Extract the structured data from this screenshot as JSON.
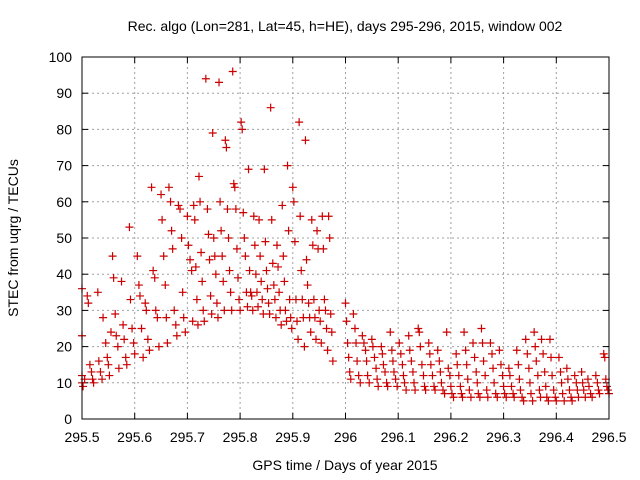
{
  "chart_data": {
    "type": "scatter",
    "title": "Rec. algo (Lon=281, Lat=45, h=HE), days 295-296, 2015, window 002",
    "xlabel": "GPS time / Days of year 2015",
    "ylabel": "STEC from uqrg / TECUs",
    "xlim": [
      295.5,
      296.5
    ],
    "ylim": [
      0,
      100
    ],
    "grid": true,
    "marker": "+",
    "color": "#cc0000",
    "xticks": [
      295.5,
      295.6,
      295.7,
      295.8,
      295.9,
      296.0,
      296.1,
      296.2,
      296.3,
      296.4,
      296.5
    ],
    "xtick_labels": [
      "295.5",
      "295.6",
      "295.7",
      "295.8",
      "295.9",
      "296",
      "296.1",
      "296.2",
      "296.3",
      "296.4",
      "296.5"
    ],
    "yticks": [
      0,
      10,
      20,
      30,
      40,
      50,
      60,
      70,
      80,
      90,
      100
    ],
    "ytick_labels": [
      "0",
      "10",
      "20",
      "30",
      "40",
      "50",
      "60",
      "70",
      "80",
      "90",
      "100"
    ],
    "points": [
      [
        295.5,
        36
      ],
      [
        295.5,
        23
      ],
      [
        295.5,
        12
      ],
      [
        295.5,
        10
      ],
      [
        295.502,
        9
      ],
      [
        295.505,
        11
      ],
      [
        295.51,
        34
      ],
      [
        295.512,
        32
      ],
      [
        295.515,
        15
      ],
      [
        295.518,
        13
      ],
      [
        295.52,
        11
      ],
      [
        295.522,
        10
      ],
      [
        295.53,
        35
      ],
      [
        295.532,
        16
      ],
      [
        295.535,
        13
      ],
      [
        295.538,
        11
      ],
      [
        295.54,
        28
      ],
      [
        295.545,
        21
      ],
      [
        295.548,
        17
      ],
      [
        295.55,
        15
      ],
      [
        295.552,
        12
      ],
      [
        295.555,
        24
      ],
      [
        295.558,
        45
      ],
      [
        295.56,
        39
      ],
      [
        295.563,
        29
      ],
      [
        295.565,
        23
      ],
      [
        295.568,
        20
      ],
      [
        295.57,
        14
      ],
      [
        295.575,
        38
      ],
      [
        295.578,
        26
      ],
      [
        295.58,
        22
      ],
      [
        295.583,
        17
      ],
      [
        295.585,
        15
      ],
      [
        295.59,
        53
      ],
      [
        295.592,
        33
      ],
      [
        295.595,
        25
      ],
      [
        295.598,
        21
      ],
      [
        295.6,
        18
      ],
      [
        295.605,
        45
      ],
      [
        295.608,
        37
      ],
      [
        295.61,
        34
      ],
      [
        295.613,
        25
      ],
      [
        295.616,
        17
      ],
      [
        295.62,
        32
      ],
      [
        295.622,
        30
      ],
      [
        295.625,
        22
      ],
      [
        295.628,
        19
      ],
      [
        295.632,
        64
      ],
      [
        295.635,
        41
      ],
      [
        295.638,
        39
      ],
      [
        295.64,
        30
      ],
      [
        295.643,
        28
      ],
      [
        295.646,
        20
      ],
      [
        295.65,
        62
      ],
      [
        295.652,
        55
      ],
      [
        295.655,
        45
      ],
      [
        295.658,
        37
      ],
      [
        295.66,
        28
      ],
      [
        295.662,
        21
      ],
      [
        295.665,
        64
      ],
      [
        295.668,
        60
      ],
      [
        295.67,
        52
      ],
      [
        295.672,
        47
      ],
      [
        295.675,
        30
      ],
      [
        295.678,
        26
      ],
      [
        295.68,
        23
      ],
      [
        295.683,
        59
      ],
      [
        295.686,
        58
      ],
      [
        295.689,
        50
      ],
      [
        295.691,
        35
      ],
      [
        295.693,
        28
      ],
      [
        295.696,
        24
      ],
      [
        295.7,
        56
      ],
      [
        295.702,
        48
      ],
      [
        295.705,
        44
      ],
      [
        295.708,
        41
      ],
      [
        295.71,
        27
      ],
      [
        295.712,
        59
      ],
      [
        295.714,
        55
      ],
      [
        295.716,
        42
      ],
      [
        295.718,
        33
      ],
      [
        295.72,
        26
      ],
      [
        295.722,
        67
      ],
      [
        295.724,
        60
      ],
      [
        295.726,
        46
      ],
      [
        295.728,
        38
      ],
      [
        295.73,
        30
      ],
      [
        295.732,
        27
      ],
      [
        295.735,
        94
      ],
      [
        295.738,
        58
      ],
      [
        295.74,
        51
      ],
      [
        295.742,
        44
      ],
      [
        295.744,
        34
      ],
      [
        295.746,
        29
      ],
      [
        295.748,
        79
      ],
      [
        295.75,
        50
      ],
      [
        295.752,
        45
      ],
      [
        295.754,
        40
      ],
      [
        295.756,
        32
      ],
      [
        295.758,
        28
      ],
      [
        295.76,
        93
      ],
      [
        295.762,
        60
      ],
      [
        295.764,
        52
      ],
      [
        295.766,
        45
      ],
      [
        295.768,
        38
      ],
      [
        295.77,
        30
      ],
      [
        295.772,
        77
      ],
      [
        295.774,
        75
      ],
      [
        295.776,
        58
      ],
      [
        295.778,
        50
      ],
      [
        295.78,
        41
      ],
      [
        295.782,
        35
      ],
      [
        295.784,
        30
      ],
      [
        295.786,
        96
      ],
      [
        295.788,
        65
      ],
      [
        295.79,
        64
      ],
      [
        295.792,
        58
      ],
      [
        295.794,
        47
      ],
      [
        295.796,
        39
      ],
      [
        295.798,
        33
      ],
      [
        295.8,
        30
      ],
      [
        295.802,
        82
      ],
      [
        295.804,
        80
      ],
      [
        295.806,
        57
      ],
      [
        295.808,
        50
      ],
      [
        295.81,
        45
      ],
      [
        295.812,
        35
      ],
      [
        295.814,
        31
      ],
      [
        295.816,
        69
      ],
      [
        295.818,
        41
      ],
      [
        295.82,
        35
      ],
      [
        295.822,
        34
      ],
      [
        295.824,
        30
      ],
      [
        295.826,
        56
      ],
      [
        295.828,
        48
      ],
      [
        295.83,
        40
      ],
      [
        295.832,
        35
      ],
      [
        295.834,
        31
      ],
      [
        295.836,
        55
      ],
      [
        295.838,
        45
      ],
      [
        295.84,
        38
      ],
      [
        295.842,
        33
      ],
      [
        295.844,
        29
      ],
      [
        295.846,
        69
      ],
      [
        295.848,
        49
      ],
      [
        295.85,
        41
      ],
      [
        295.852,
        36
      ],
      [
        295.854,
        32
      ],
      [
        295.856,
        29
      ],
      [
        295.858,
        86
      ],
      [
        295.86,
        55
      ],
      [
        295.862,
        43
      ],
      [
        295.864,
        37
      ],
      [
        295.866,
        33
      ],
      [
        295.868,
        28
      ],
      [
        295.87,
        48
      ],
      [
        295.872,
        42
      ],
      [
        295.874,
        35
      ],
      [
        295.876,
        30
      ],
      [
        295.878,
        26
      ],
      [
        295.88,
        59
      ],
      [
        295.882,
        45
      ],
      [
        295.884,
        38
      ],
      [
        295.886,
        30
      ],
      [
        295.888,
        27
      ],
      [
        295.89,
        70
      ],
      [
        295.892,
        52
      ],
      [
        295.894,
        33
      ],
      [
        295.896,
        28
      ],
      [
        295.898,
        25
      ],
      [
        295.9,
        64
      ],
      [
        295.902,
        60
      ],
      [
        295.904,
        49
      ],
      [
        295.906,
        33
      ],
      [
        295.908,
        27
      ],
      [
        295.91,
        22
      ],
      [
        295.912,
        82
      ],
      [
        295.914,
        56
      ],
      [
        295.916,
        41
      ],
      [
        295.918,
        33
      ],
      [
        295.92,
        28
      ],
      [
        295.922,
        20
      ],
      [
        295.924,
        77
      ],
      [
        295.926,
        44
      ],
      [
        295.928,
        37
      ],
      [
        295.93,
        32
      ],
      [
        295.932,
        28
      ],
      [
        295.934,
        24
      ],
      [
        295.936,
        55
      ],
      [
        295.938,
        48
      ],
      [
        295.94,
        33
      ],
      [
        295.942,
        28
      ],
      [
        295.944,
        22
      ],
      [
        295.946,
        52
      ],
      [
        295.948,
        47
      ],
      [
        295.95,
        30
      ],
      [
        295.952,
        27
      ],
      [
        295.954,
        21
      ],
      [
        295.956,
        56
      ],
      [
        295.958,
        47
      ],
      [
        295.96,
        33
      ],
      [
        295.962,
        30
      ],
      [
        295.964,
        25
      ],
      [
        295.966,
        19
      ],
      [
        295.968,
        56
      ],
      [
        295.97,
        50
      ],
      [
        295.972,
        29
      ],
      [
        295.974,
        24
      ],
      [
        295.976,
        16
      ],
      [
        296.0,
        32
      ],
      [
        296.002,
        27
      ],
      [
        296.004,
        21
      ],
      [
        296.006,
        17
      ],
      [
        296.008,
        13
      ],
      [
        296.01,
        11
      ],
      [
        296.015,
        29
      ],
      [
        296.018,
        25
      ],
      [
        296.02,
        21
      ],
      [
        296.022,
        16
      ],
      [
        296.025,
        12
      ],
      [
        296.028,
        10
      ],
      [
        296.032,
        23
      ],
      [
        296.035,
        21
      ],
      [
        296.038,
        19
      ],
      [
        296.04,
        16
      ],
      [
        296.042,
        12
      ],
      [
        296.045,
        10
      ],
      [
        296.05,
        22
      ],
      [
        296.052,
        20
      ],
      [
        296.055,
        17
      ],
      [
        296.058,
        14
      ],
      [
        296.06,
        11
      ],
      [
        296.062,
        9
      ],
      [
        296.068,
        20
      ],
      [
        296.07,
        18
      ],
      [
        296.072,
        15
      ],
      [
        296.075,
        13
      ],
      [
        296.078,
        10
      ],
      [
        296.08,
        9
      ],
      [
        296.085,
        24
      ],
      [
        296.088,
        19
      ],
      [
        296.09,
        16
      ],
      [
        296.092,
        13
      ],
      [
        296.095,
        11
      ],
      [
        296.098,
        9
      ],
      [
        296.102,
        21
      ],
      [
        296.105,
        18
      ],
      [
        296.108,
        15
      ],
      [
        296.11,
        12
      ],
      [
        296.112,
        10
      ],
      [
        296.115,
        8
      ],
      [
        296.12,
        23
      ],
      [
        296.122,
        19
      ],
      [
        296.125,
        16
      ],
      [
        296.128,
        13
      ],
      [
        296.13,
        10
      ],
      [
        296.132,
        8
      ],
      [
        296.138,
        25
      ],
      [
        296.14,
        24
      ],
      [
        296.142,
        20
      ],
      [
        296.145,
        15
      ],
      [
        296.148,
        12
      ],
      [
        296.15,
        9
      ],
      [
        296.152,
        8
      ],
      [
        296.158,
        21
      ],
      [
        296.16,
        18
      ],
      [
        296.162,
        15
      ],
      [
        296.165,
        12
      ],
      [
        296.168,
        9
      ],
      [
        296.17,
        8
      ],
      [
        296.175,
        19
      ],
      [
        296.178,
        16
      ],
      [
        296.18,
        13
      ],
      [
        296.182,
        10
      ],
      [
        296.185,
        8
      ],
      [
        296.188,
        7
      ],
      [
        296.192,
        24
      ],
      [
        296.195,
        14
      ],
      [
        296.198,
        12
      ],
      [
        296.2,
        9
      ],
      [
        296.202,
        7
      ],
      [
        296.205,
        6
      ],
      [
        296.21,
        18
      ],
      [
        296.212,
        15
      ],
      [
        296.215,
        12
      ],
      [
        296.218,
        9
      ],
      [
        296.22,
        7
      ],
      [
        296.222,
        6
      ],
      [
        296.225,
        24
      ],
      [
        296.228,
        19
      ],
      [
        296.23,
        15
      ],
      [
        296.232,
        11
      ],
      [
        296.235,
        8
      ],
      [
        296.238,
        6
      ],
      [
        296.242,
        21
      ],
      [
        296.245,
        17
      ],
      [
        296.248,
        13
      ],
      [
        296.25,
        10
      ],
      [
        296.252,
        7
      ],
      [
        296.255,
        6
      ],
      [
        296.258,
        25
      ],
      [
        296.26,
        21
      ],
      [
        296.262,
        16
      ],
      [
        296.265,
        12
      ],
      [
        296.268,
        8
      ],
      [
        296.27,
        6
      ],
      [
        296.275,
        21
      ],
      [
        296.278,
        18
      ],
      [
        296.28,
        14
      ],
      [
        296.282,
        10
      ],
      [
        296.285,
        7
      ],
      [
        296.288,
        6
      ],
      [
        296.292,
        19
      ],
      [
        296.295,
        15
      ],
      [
        296.298,
        12
      ],
      [
        296.3,
        9
      ],
      [
        296.302,
        7
      ],
      [
        296.305,
        6
      ],
      [
        296.31,
        14
      ],
      [
        296.312,
        12
      ],
      [
        296.315,
        9
      ],
      [
        296.318,
        7
      ],
      [
        296.32,
        6
      ],
      [
        296.325,
        19
      ],
      [
        296.328,
        15
      ],
      [
        296.33,
        11
      ],
      [
        296.332,
        8
      ],
      [
        296.335,
        6
      ],
      [
        296.338,
        5
      ],
      [
        296.342,
        22
      ],
      [
        296.345,
        18
      ],
      [
        296.348,
        14
      ],
      [
        296.35,
        10
      ],
      [
        296.352,
        7
      ],
      [
        296.355,
        5
      ],
      [
        296.358,
        24
      ],
      [
        296.36,
        20
      ],
      [
        296.362,
        16
      ],
      [
        296.365,
        12
      ],
      [
        296.368,
        8
      ],
      [
        296.37,
        6
      ],
      [
        296.372,
        22
      ],
      [
        296.375,
        18
      ],
      [
        296.378,
        13
      ],
      [
        296.38,
        9
      ],
      [
        296.382,
        6
      ],
      [
        296.385,
        5
      ],
      [
        296.388,
        22
      ],
      [
        296.39,
        17
      ],
      [
        296.392,
        12
      ],
      [
        296.395,
        8
      ],
      [
        296.398,
        6
      ],
      [
        296.4,
        5
      ],
      [
        296.405,
        17
      ],
      [
        296.408,
        13
      ],
      [
        296.41,
        10
      ],
      [
        296.412,
        7
      ],
      [
        296.415,
        5
      ],
      [
        296.42,
        14
      ],
      [
        296.422,
        11
      ],
      [
        296.425,
        8
      ],
      [
        296.428,
        6
      ],
      [
        296.43,
        5
      ],
      [
        296.435,
        12
      ],
      [
        296.438,
        10
      ],
      [
        296.44,
        8
      ],
      [
        296.442,
        6
      ],
      [
        296.448,
        13
      ],
      [
        296.45,
        10
      ],
      [
        296.452,
        8
      ],
      [
        296.455,
        6
      ],
      [
        296.46,
        11
      ],
      [
        296.462,
        9
      ],
      [
        296.465,
        7
      ],
      [
        296.468,
        6
      ],
      [
        296.475,
        12
      ],
      [
        296.478,
        10
      ],
      [
        296.48,
        8
      ],
      [
        296.482,
        7
      ],
      [
        296.49,
        18
      ],
      [
        296.492,
        17
      ],
      [
        296.494,
        11
      ],
      [
        296.496,
        9
      ],
      [
        296.498,
        8
      ],
      [
        296.5,
        7
      ]
    ]
  }
}
